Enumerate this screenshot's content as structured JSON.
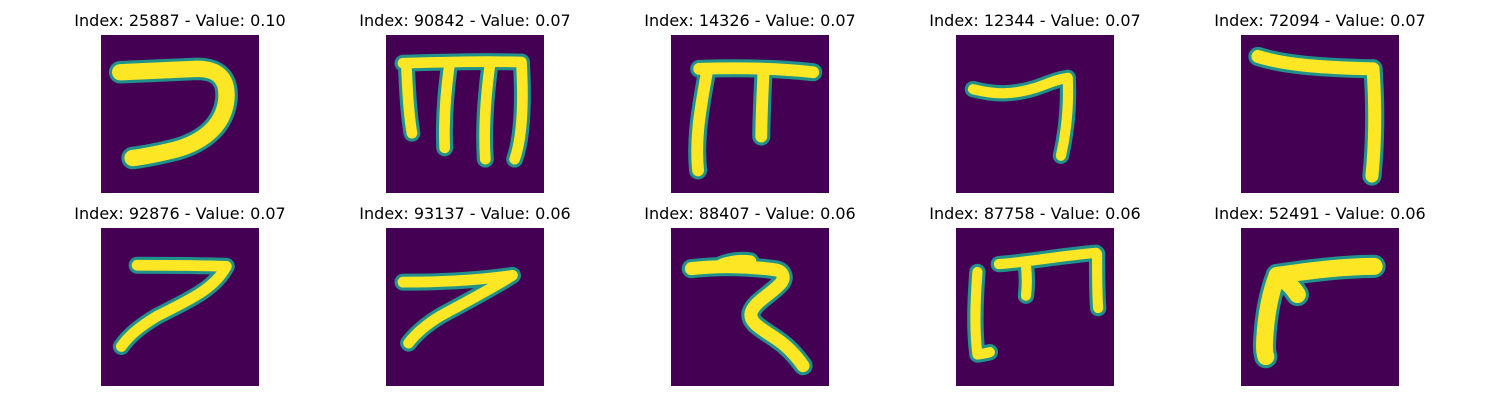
{
  "figure": {
    "colormap": {
      "background": "#440154",
      "edge": "#21918c",
      "stroke": "#fde725"
    },
    "panels": [
      {
        "title": "Index: 25887 - Value: 0.10",
        "glyph": "hook-left"
      },
      {
        "title": "Index: 90842 - Value: 0.07",
        "glyph": "three-prong"
      },
      {
        "title": "Index: 14326 - Value: 0.07",
        "glyph": "pi-shape"
      },
      {
        "title": "Index: 12344 - Value: 0.07",
        "glyph": "seven-thin"
      },
      {
        "title": "Index: 72094 - Value: 0.07",
        "glyph": "seven-tall"
      },
      {
        "title": "Index: 92876 - Value: 0.07",
        "glyph": "seven-slant"
      },
      {
        "title": "Index: 93137 - Value: 0.06",
        "glyph": "seven-arrow"
      },
      {
        "title": "Index: 88407 - Value: 0.06",
        "glyph": "zigzag"
      },
      {
        "title": "Index: 87758 - Value: 0.06",
        "glyph": "three-prong-tall"
      },
      {
        "title": "Index: 52491 - Value: 0.06",
        "glyph": "seven-curve"
      }
    ]
  }
}
